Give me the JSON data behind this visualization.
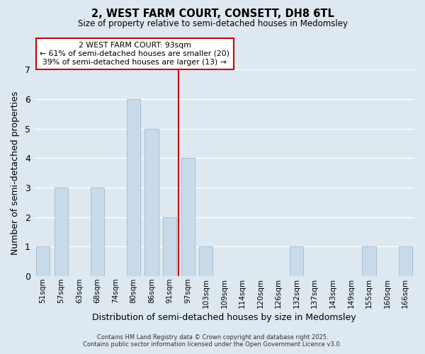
{
  "title": "2, WEST FARM COURT, CONSETT, DH8 6TL",
  "subtitle": "Size of property relative to semi-detached houses in Medomsley",
  "xlabel": "Distribution of semi-detached houses by size in Medomsley",
  "ylabel": "Number of semi-detached properties",
  "categories": [
    "51sqm",
    "57sqm",
    "63sqm",
    "68sqm",
    "74sqm",
    "80sqm",
    "86sqm",
    "91sqm",
    "97sqm",
    "103sqm",
    "109sqm",
    "114sqm",
    "120sqm",
    "126sqm",
    "132sqm",
    "137sqm",
    "143sqm",
    "149sqm",
    "155sqm",
    "160sqm",
    "166sqm"
  ],
  "values": [
    1,
    3,
    0,
    3,
    0,
    6,
    5,
    2,
    4,
    1,
    0,
    0,
    0,
    0,
    1,
    0,
    0,
    0,
    1,
    0,
    1
  ],
  "bar_color": "#c9daea",
  "bar_edge_color": "#aabfcf",
  "highlight_line_color": "#cc0000",
  "annotation_line1": "2 WEST FARM COURT: 93sqm",
  "annotation_line2": "← 61% of semi-detached houses are smaller (20)",
  "annotation_line3": "39% of semi-detached houses are larger (13) →",
  "annotation_box_color": "#ffffff",
  "annotation_box_edge": "#cc0000",
  "ylim": [
    0,
    7
  ],
  "yticks": [
    0,
    1,
    2,
    3,
    4,
    5,
    6,
    7
  ],
  "bg_color": "#dde8f0",
  "grid_color": "#ffffff",
  "footer_line1": "Contains HM Land Registry data © Crown copyright and database right 2025.",
  "footer_line2": "Contains public sector information licensed under the Open Government Licence v3.0."
}
